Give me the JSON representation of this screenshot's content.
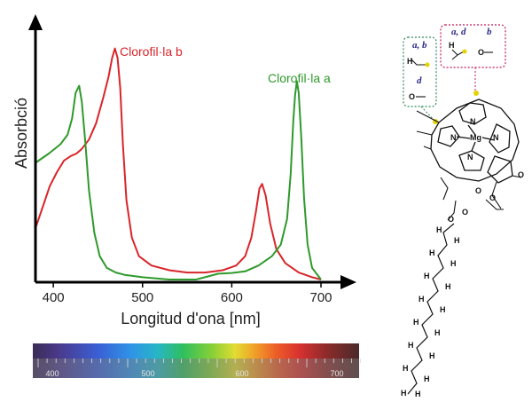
{
  "chart_data": {
    "type": "line",
    "title": "",
    "xlabel": "Longitud d'ona [nm]",
    "ylabel": "Absorbció",
    "xlim": [
      380,
      720
    ],
    "ylim": [
      0,
      1
    ],
    "x_ticks": [
      400,
      500,
      600,
      700
    ],
    "grid": false,
    "series": [
      {
        "name": "Clorofil·la b",
        "color": "#d9252a",
        "label_position": "top",
        "points": [
          [
            380,
            0.22
          ],
          [
            388,
            0.31
          ],
          [
            396,
            0.4
          ],
          [
            404,
            0.46
          ],
          [
            412,
            0.51
          ],
          [
            420,
            0.53
          ],
          [
            426,
            0.54
          ],
          [
            432,
            0.56
          ],
          [
            440,
            0.6
          ],
          [
            448,
            0.67
          ],
          [
            456,
            0.78
          ],
          [
            462,
            0.87
          ],
          [
            466,
            0.95
          ],
          [
            469,
            0.99
          ],
          [
            472,
            0.95
          ],
          [
            475,
            0.82
          ],
          [
            478,
            0.58
          ],
          [
            482,
            0.34
          ],
          [
            488,
            0.18
          ],
          [
            496,
            0.1
          ],
          [
            510,
            0.06
          ],
          [
            530,
            0.04
          ],
          [
            550,
            0.03
          ],
          [
            570,
            0.03
          ],
          [
            590,
            0.04
          ],
          [
            605,
            0.06
          ],
          [
            615,
            0.1
          ],
          [
            622,
            0.18
          ],
          [
            627,
            0.29
          ],
          [
            631,
            0.39
          ],
          [
            634,
            0.41
          ],
          [
            638,
            0.36
          ],
          [
            643,
            0.24
          ],
          [
            650,
            0.13
          ],
          [
            660,
            0.07
          ],
          [
            675,
            0.03
          ],
          [
            690,
            0.01
          ],
          [
            700,
            0.0
          ]
        ]
      },
      {
        "name": "Clorofil·la a",
        "color": "#2e9a2b",
        "label_position": "right",
        "points": [
          [
            380,
            0.5
          ],
          [
            395,
            0.54
          ],
          [
            408,
            0.58
          ],
          [
            416,
            0.62
          ],
          [
            421,
            0.69
          ],
          [
            425,
            0.8
          ],
          [
            429,
            0.83
          ],
          [
            432,
            0.76
          ],
          [
            436,
            0.58
          ],
          [
            440,
            0.38
          ],
          [
            446,
            0.2
          ],
          [
            452,
            0.1
          ],
          [
            460,
            0.05
          ],
          [
            470,
            0.03
          ],
          [
            480,
            0.02
          ],
          [
            500,
            0.01
          ],
          [
            530,
            0.0
          ],
          [
            560,
            0.0
          ],
          [
            570,
            0.01
          ],
          [
            585,
            0.025
          ],
          [
            600,
            0.028
          ],
          [
            615,
            0.035
          ],
          [
            630,
            0.06
          ],
          [
            645,
            0.1
          ],
          [
            655,
            0.15
          ],
          [
            662,
            0.26
          ],
          [
            666,
            0.45
          ],
          [
            669,
            0.68
          ],
          [
            671,
            0.79
          ],
          [
            673,
            0.85
          ],
          [
            675,
            0.8
          ],
          [
            678,
            0.6
          ],
          [
            681,
            0.35
          ],
          [
            685,
            0.15
          ],
          [
            690,
            0.05
          ],
          [
            700,
            0.0
          ]
        ]
      }
    ]
  },
  "spectrum": {
    "tick_labels": [
      "400",
      "500",
      "600",
      "700"
    ]
  },
  "molecule": {
    "labels": {
      "group_vinyl": "a, b",
      "group_aldehyde_left": "d",
      "group_methyl": "a, d",
      "group_aldehyde_right": "b"
    },
    "atoms": {
      "metal": "Mg",
      "nitrogen": "N",
      "oxygen": "O",
      "hydrogen": "H"
    },
    "colors": {
      "green_box": "#2e8b57",
      "pink_box": "#c2185b",
      "highlight": "#e6d200"
    }
  }
}
